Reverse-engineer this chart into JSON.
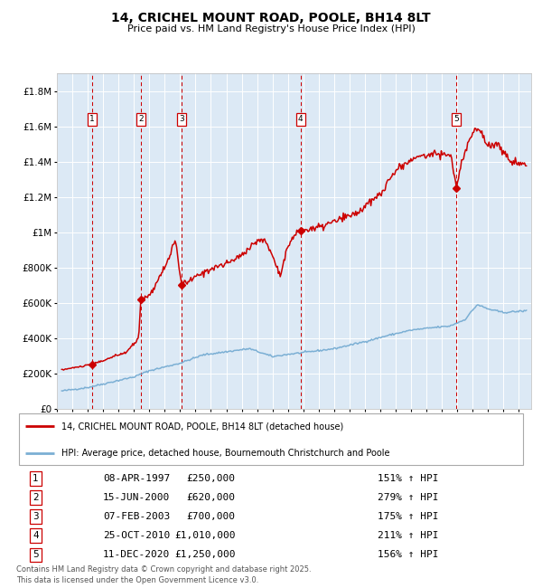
{
  "title": "14, CRICHEL MOUNT ROAD, POOLE, BH14 8LT",
  "subtitle": "Price paid vs. HM Land Registry's House Price Index (HPI)",
  "ylim": [
    0,
    1900000
  ],
  "yticks": [
    0,
    200000,
    400000,
    600000,
    800000,
    1000000,
    1200000,
    1400000,
    1600000,
    1800000
  ],
  "ytick_labels": [
    "£0",
    "£200K",
    "£400K",
    "£600K",
    "£800K",
    "£1M",
    "£1.2M",
    "£1.4M",
    "£1.6M",
    "£1.8M"
  ],
  "xlim_start": 1995.0,
  "xlim_end": 2025.8,
  "bg_color": "#dce9f5",
  "grid_color": "#ffffff",
  "sale_color": "#cc0000",
  "hpi_color": "#7bafd4",
  "dashed_line_color": "#cc0000",
  "legend_label_sale": "14, CRICHEL MOUNT ROAD, POOLE, BH14 8LT (detached house)",
  "legend_label_hpi": "HPI: Average price, detached house, Bournemouth Christchurch and Poole",
  "footer": "Contains HM Land Registry data © Crown copyright and database right 2025.\nThis data is licensed under the Open Government Licence v3.0.",
  "sales": [
    {
      "num": 1,
      "date": 1997.27,
      "price": 250000,
      "label": "08-APR-1997",
      "price_str": "£250,000",
      "pct": "151% ↑ HPI"
    },
    {
      "num": 2,
      "date": 2000.45,
      "price": 620000,
      "label": "15-JUN-2000",
      "price_str": "£620,000",
      "pct": "279% ↑ HPI"
    },
    {
      "num": 3,
      "date": 2003.1,
      "price": 700000,
      "label": "07-FEB-2003",
      "price_str": "£700,000",
      "pct": "175% ↑ HPI"
    },
    {
      "num": 4,
      "date": 2010.82,
      "price": 1010000,
      "label": "25-OCT-2010",
      "price_str": "£1,010,000",
      "pct": "211% ↑ HPI"
    },
    {
      "num": 5,
      "date": 2020.95,
      "price": 1250000,
      "label": "11-DEC-2020",
      "price_str": "£1,250,000",
      "pct": "156% ↑ HPI"
    }
  ]
}
